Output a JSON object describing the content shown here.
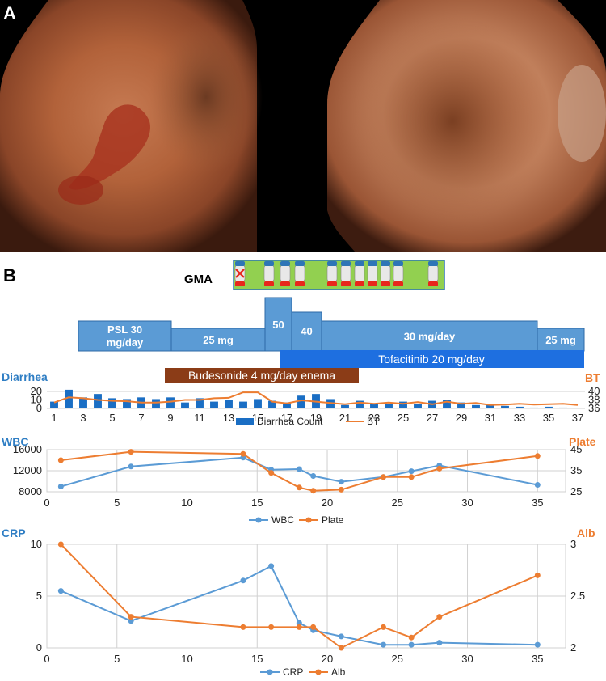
{
  "panel_labels": {
    "a": "A",
    "b": "B"
  },
  "gma": {
    "label": "GMA",
    "sessions": [
      {
        "x": 1,
        "cancelled": true
      },
      {
        "x": 2,
        "cancelled": false
      },
      {
        "x": 3,
        "cancelled": false
      },
      {
        "x": 4,
        "cancelled": false
      },
      {
        "x": 5,
        "cancelled": false
      },
      {
        "x": 6,
        "cancelled": false
      },
      {
        "x": 7,
        "cancelled": false
      },
      {
        "x": 8,
        "cancelled": false
      },
      {
        "x": 9,
        "cancelled": false
      },
      {
        "x": 10,
        "cancelled": false
      },
      {
        "x": 11,
        "cancelled": false
      }
    ]
  },
  "treatments": {
    "psl": [
      {
        "label": "PSL 30 mg/day",
        "start": 1,
        "end": 9
      },
      {
        "label": "25 mg",
        "start": 9,
        "end": 15
      },
      {
        "label": "50",
        "start": 15,
        "end": 17
      },
      {
        "label": "40",
        "start": 17,
        "end": 19
      },
      {
        "label": "30 mg/day",
        "start": 19,
        "end": 33
      },
      {
        "label": "25 mg",
        "start": 33,
        "end": 36
      }
    ],
    "tofacitinib": {
      "label": "Tofacitinib 20 mg/day",
      "start": 16,
      "end": 36
    },
    "budesonide": {
      "label": "Budesonide 4 mg/day enema",
      "start": 9,
      "end": 22
    }
  },
  "colors": {
    "bar_blue": "#1a6ec4",
    "line_orange": "#ed7d31",
    "wbc_blue": "#5b9bd5",
    "label_blue": "#2f7ec4",
    "psl_fill": "#5b9bd5",
    "tofa_fill": "#1e6fe0",
    "bud_fill": "#8b3c17",
    "gma_green": "#92d050"
  },
  "chart_data": [
    {
      "type": "bar",
      "title": "",
      "left_axis_title": "Diarrhea",
      "right_axis_title": "BT",
      "x": [
        1,
        2,
        3,
        4,
        5,
        6,
        7,
        8,
        9,
        10,
        11,
        12,
        13,
        14,
        15,
        16,
        17,
        18,
        19,
        20,
        21,
        22,
        23,
        24,
        25,
        26,
        27,
        28,
        29,
        30,
        31,
        32,
        33,
        34,
        35,
        36,
        37
      ],
      "x_tick_labels": [
        "1",
        "3",
        "5",
        "7",
        "9",
        "11",
        "13",
        "15",
        "17",
        "19",
        "21",
        "23",
        "25",
        "27",
        "29",
        "31",
        "33",
        "35",
        "37"
      ],
      "ylim_left": [
        0,
        20
      ],
      "y_ticks_left": [
        0,
        10,
        20
      ],
      "ylim_right": [
        36,
        40
      ],
      "y_ticks_right": [
        36,
        38,
        40
      ],
      "series": [
        {
          "name": "Diarrhea Count",
          "type": "bar",
          "axis": "left",
          "values": [
            8,
            22,
            13,
            17,
            12,
            11,
            13,
            11,
            13,
            7,
            12,
            8,
            10,
            8,
            11,
            9,
            7,
            15,
            17,
            11,
            4,
            9,
            6,
            5,
            8,
            5,
            9,
            10,
            7,
            4,
            4,
            3,
            2,
            1,
            2,
            1,
            0
          ]
        },
        {
          "name": "BT",
          "type": "line",
          "axis": "right",
          "values": [
            37.4,
            38.6,
            38.4,
            38.0,
            37.8,
            37.7,
            37.4,
            37.4,
            37.6,
            38.0,
            38.0,
            38.4,
            38.5,
            39.8,
            39.8,
            37.6,
            37.2,
            37.9,
            37.6,
            37.3,
            37.0,
            37.4,
            37.1,
            37.4,
            37.1,
            37.5,
            37.0,
            37.6,
            37.1,
            37.3,
            36.8,
            36.9,
            37.1,
            36.9,
            37.0,
            37.1,
            36.8
          ]
        }
      ],
      "legend_position": "bottom"
    },
    {
      "type": "line",
      "left_axis_title": "WBC",
      "right_axis_title": "Plate",
      "xlim": [
        0,
        37
      ],
      "x_ticks": [
        0,
        5,
        10,
        15,
        20,
        25,
        30,
        35
      ],
      "ylim_left": [
        8000,
        16000
      ],
      "y_ticks_left": [
        8000,
        12000,
        16000
      ],
      "ylim_right": [
        25,
        45
      ],
      "y_ticks_right": [
        25,
        35,
        45
      ],
      "series": [
        {
          "name": "WBC",
          "axis": "left",
          "x": [
            1,
            6,
            14,
            16,
            18,
            19,
            21,
            24,
            26,
            28,
            35
          ],
          "y": [
            9000,
            12800,
            14500,
            12200,
            12300,
            11000,
            9900,
            10800,
            11900,
            13000,
            9300
          ]
        },
        {
          "name": "Plate",
          "axis": "right",
          "x": [
            1,
            6,
            14,
            16,
            18,
            19,
            21,
            24,
            26,
            28,
            35
          ],
          "y": [
            40,
            44,
            43,
            34,
            27,
            25.5,
            26,
            32,
            32,
            36,
            42
          ]
        }
      ],
      "legend_position": "bottom"
    },
    {
      "type": "line",
      "left_axis_title": "CRP",
      "right_axis_title": "Alb",
      "xlim": [
        0,
        37
      ],
      "x_ticks": [
        0,
        5,
        10,
        15,
        20,
        25,
        30,
        35
      ],
      "ylim_left": [
        0,
        10
      ],
      "y_ticks_left": [
        0,
        5,
        10
      ],
      "ylim_right": [
        2,
        3
      ],
      "y_ticks_right": [
        2,
        2.5,
        3
      ],
      "series": [
        {
          "name": "CRP",
          "axis": "left",
          "x": [
            1,
            6,
            14,
            16,
            18,
            19,
            21,
            24,
            26,
            28,
            35
          ],
          "y": [
            5.5,
            2.6,
            6.5,
            7.9,
            2.4,
            1.7,
            1.1,
            0.3,
            0.3,
            0.5,
            0.3
          ]
        },
        {
          "name": "Alb",
          "axis": "right",
          "x": [
            1,
            6,
            14,
            16,
            18,
            19,
            21,
            24,
            26,
            28,
            35
          ],
          "y": [
            3.0,
            2.3,
            2.2,
            2.2,
            2.2,
            2.2,
            2.0,
            2.2,
            2.1,
            2.3,
            2.7
          ]
        }
      ],
      "legend_position": "bottom"
    }
  ]
}
